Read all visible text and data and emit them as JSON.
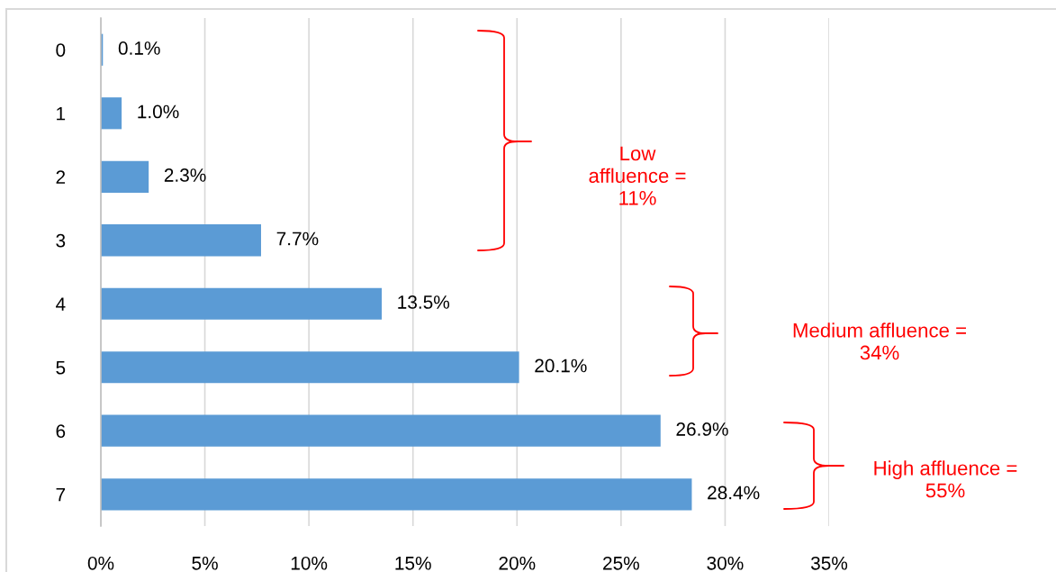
{
  "chart_data": {
    "type": "bar",
    "orientation": "horizontal",
    "categories": [
      "0",
      "1",
      "2",
      "3",
      "4",
      "5",
      "6",
      "7"
    ],
    "values": [
      0.1,
      1.0,
      2.3,
      7.7,
      13.5,
      20.1,
      26.9,
      28.4
    ],
    "color": "#5b9bd5",
    "value_labels": [
      "0.1%",
      "1.0%",
      "2.3%",
      "7.7%",
      "13.5%",
      "20.1%",
      "26.9%",
      "28.4%"
    ],
    "xlim": [
      0,
      35
    ],
    "xticks": [
      {
        "value": 0,
        "label": "0%"
      },
      {
        "value": 5,
        "label": "5%"
      },
      {
        "value": 10,
        "label": "10%"
      },
      {
        "value": 15,
        "label": "15%"
      },
      {
        "value": 20,
        "label": "20%"
      },
      {
        "value": 25,
        "label": "25%"
      },
      {
        "value": 30,
        "label": "30%"
      },
      {
        "value": 35,
        "label": "35%"
      }
    ],
    "grid": "x",
    "annotations": [
      "Low\naffluence =\n11%",
      "Medium affluence =\n34%",
      "High affluence =\n55%"
    ]
  }
}
